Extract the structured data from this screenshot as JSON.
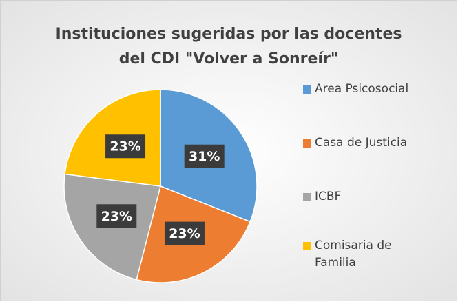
{
  "chart_data": {
    "type": "pie",
    "title": [
      "Instituciones sugeridas por las docentes",
      "del CDI \"Volver a Sonreír\""
    ],
    "categories": [
      "Area Psicosocial",
      "Casa de Justicia",
      "ICBF",
      "Comisaria de Familia"
    ],
    "values": [
      31,
      23,
      23,
      23
    ],
    "value_labels": [
      "31%",
      "23%",
      "23%",
      "23%"
    ],
    "colors": [
      "#5b9bd5",
      "#ed7d31",
      "#a5a5a5",
      "#ffc000"
    ],
    "legend": "right"
  }
}
